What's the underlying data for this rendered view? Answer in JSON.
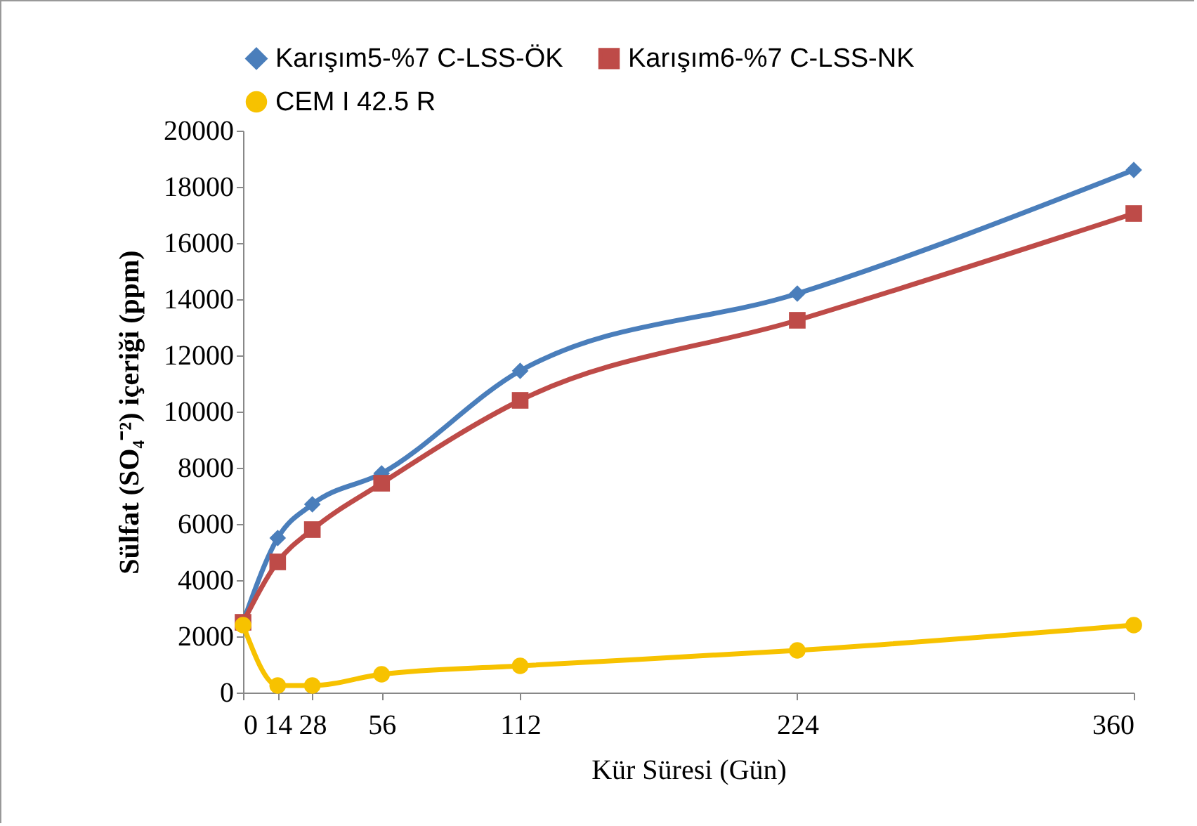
{
  "chart_data": {
    "type": "line",
    "xlabel": "Kür Süresi (Gün)",
    "ylabel": "Sülfat  (SO₄⁻²) içeriği  (ppm)",
    "x": [
      0,
      14,
      28,
      56,
      112,
      224,
      360
    ],
    "series": [
      {
        "name": "Karışım5-%7 C-LSS-ÖK",
        "color": "#4a7ebb",
        "marker": "diamond",
        "values": [
          2500,
          5500,
          6700,
          7800,
          11450,
          14200,
          18600
        ]
      },
      {
        "name": "Karışım6-%7 C-LSS-NK",
        "color": "#be4b48",
        "marker": "square",
        "values": [
          2500,
          4650,
          5800,
          7450,
          10400,
          13250,
          17050
        ]
      },
      {
        "name": "CEM I 42.5 R",
        "color": "#f7c200",
        "marker": "circle",
        "values": [
          2400,
          250,
          250,
          650,
          950,
          1500,
          2400
        ]
      }
    ],
    "xlim": [
      0,
      360
    ],
    "xticks": [
      0,
      14,
      28,
      56,
      112,
      224,
      360
    ],
    "ylim": [
      0,
      20000
    ],
    "yticks": [
      0,
      2000,
      4000,
      6000,
      8000,
      10000,
      12000,
      14000,
      16000,
      18000,
      20000
    ],
    "grid": false,
    "legend": "top"
  }
}
